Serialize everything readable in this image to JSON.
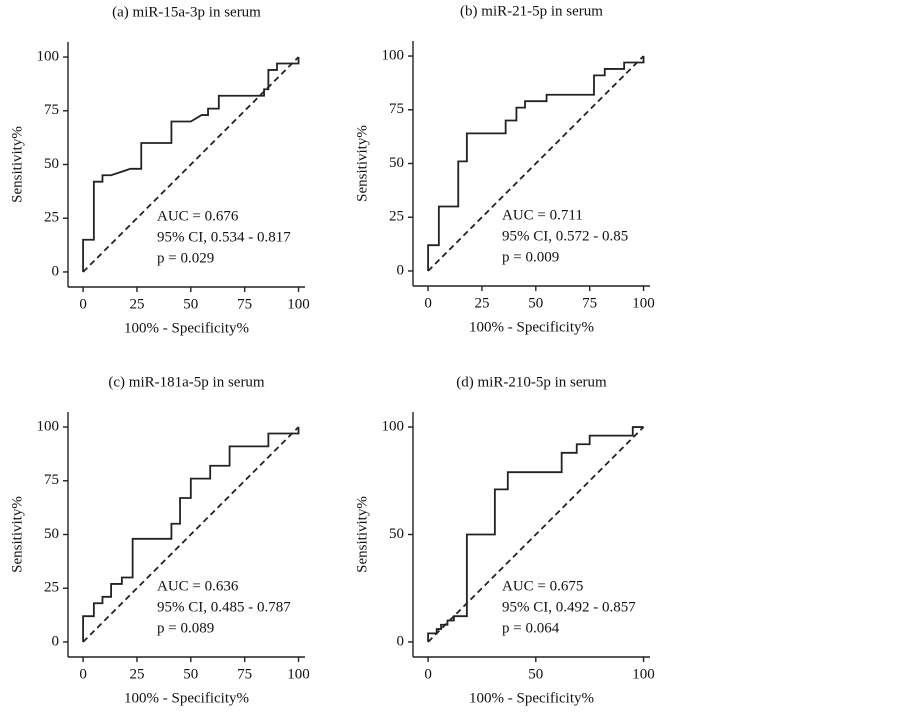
{
  "chart_data": [
    {
      "type": "line",
      "title": "(a) miR-15a-3p in serum",
      "xlabel": "100% - Specificity%",
      "ylabel": "Sensitivity%",
      "annotations": [
        "AUC = 0.676",
        "95% CI, 0.534 - 0.817",
        "p = 0.029"
      ],
      "xlim": [
        -7,
        103
      ],
      "ylim": [
        -7,
        107
      ],
      "xticks": [
        0,
        25,
        50,
        75,
        100
      ],
      "yticks": [
        0,
        25,
        50,
        75,
        100
      ],
      "x": [
        0,
        0,
        5,
        5,
        9,
        9,
        13,
        22,
        27,
        27,
        41,
        41,
        50,
        55,
        58,
        58,
        63,
        63,
        84,
        84,
        86,
        86,
        90,
        90,
        100,
        100
      ],
      "series": [
        {
          "color": "#222222",
          "values": [
            0,
            15,
            15,
            42,
            42,
            45,
            45,
            48,
            48,
            60,
            60,
            70,
            70,
            73,
            73,
            76,
            76,
            82,
            82,
            85,
            85,
            94,
            94,
            97,
            97,
            100
          ]
        }
      ],
      "reference_line": {
        "x": [
          0,
          100
        ],
        "values": [
          0,
          100
        ],
        "style": "dashed"
      }
    },
    {
      "type": "line",
      "title": "(b) miR-21-5p in serum",
      "xlabel": "100% - Specificity%",
      "ylabel": "Sensitivity%",
      "annotations": [
        "AUC = 0.711",
        "95% CI, 0.572 - 0.85",
        "p = 0.009"
      ],
      "xlim": [
        -7,
        103
      ],
      "ylim": [
        -7,
        107
      ],
      "xticks": [
        0,
        25,
        50,
        75,
        100
      ],
      "yticks": [
        0,
        25,
        50,
        75,
        100
      ],
      "x": [
        0,
        0,
        5,
        5,
        14,
        14,
        18,
        18,
        36,
        36,
        41,
        41,
        45,
        45,
        55,
        55,
        77,
        77,
        82,
        82,
        91,
        91,
        100,
        100
      ],
      "series": [
        {
          "color": "#222222",
          "values": [
            0,
            12,
            12,
            30,
            30,
            51,
            51,
            64,
            64,
            70,
            70,
            76,
            76,
            79,
            79,
            82,
            82,
            91,
            91,
            94,
            94,
            97,
            97,
            100
          ]
        }
      ],
      "reference_line": {
        "x": [
          0,
          100
        ],
        "values": [
          0,
          100
        ],
        "style": "dashed"
      }
    },
    {
      "type": "line",
      "title": "(c) miR-181a-5p in serum",
      "xlabel": "100% - Specificity%",
      "ylabel": "Sensitivity%",
      "annotations": [
        "AUC = 0.636",
        "95% CI, 0.485 - 0.787",
        "p = 0.089"
      ],
      "xlim": [
        -7,
        103
      ],
      "ylim": [
        -7,
        107
      ],
      "xticks": [
        0,
        25,
        50,
        75,
        100
      ],
      "yticks": [
        0,
        25,
        50,
        75,
        100
      ],
      "x": [
        0,
        0,
        5,
        5,
        9,
        9,
        13,
        13,
        18,
        18,
        23,
        23,
        41,
        41,
        45,
        45,
        50,
        50,
        59,
        59,
        68,
        68,
        86,
        86,
        100,
        100
      ],
      "series": [
        {
          "color": "#222222",
          "values": [
            0,
            12,
            12,
            18,
            18,
            21,
            21,
            27,
            27,
            30,
            30,
            48,
            48,
            55,
            55,
            67,
            67,
            76,
            76,
            82,
            82,
            91,
            91,
            97,
            97,
            100
          ]
        }
      ],
      "reference_line": {
        "x": [
          0,
          100
        ],
        "values": [
          0,
          100
        ],
        "style": "dashed"
      }
    },
    {
      "type": "line",
      "title": "(d) miR-210-5p in serum",
      "xlabel": "100% - Specificity%",
      "ylabel": "Sensitivity%",
      "annotations": [
        "AUC = 0.675",
        "95% CI, 0.492 - 0.857",
        "p = 0.064"
      ],
      "xlim": [
        -7,
        103
      ],
      "ylim": [
        -7,
        107
      ],
      "xticks": [
        0,
        50,
        100
      ],
      "yticks": [
        0,
        50,
        100
      ],
      "x": [
        0,
        0,
        4,
        4,
        6,
        6,
        9,
        9,
        12,
        12,
        18,
        18,
        31,
        31,
        37,
        37,
        62,
        62,
        69,
        69,
        75,
        75,
        95,
        95,
        100
      ],
      "series": [
        {
          "color": "#222222",
          "values": [
            0,
            4,
            4,
            6,
            6,
            8,
            8,
            10,
            10,
            12,
            12,
            50,
            50,
            71,
            71,
            79,
            79,
            88,
            88,
            92,
            92,
            96,
            96,
            100,
            100
          ]
        }
      ],
      "reference_line": {
        "x": [
          0,
          100
        ],
        "values": [
          0,
          100
        ],
        "style": "dashed"
      }
    }
  ]
}
